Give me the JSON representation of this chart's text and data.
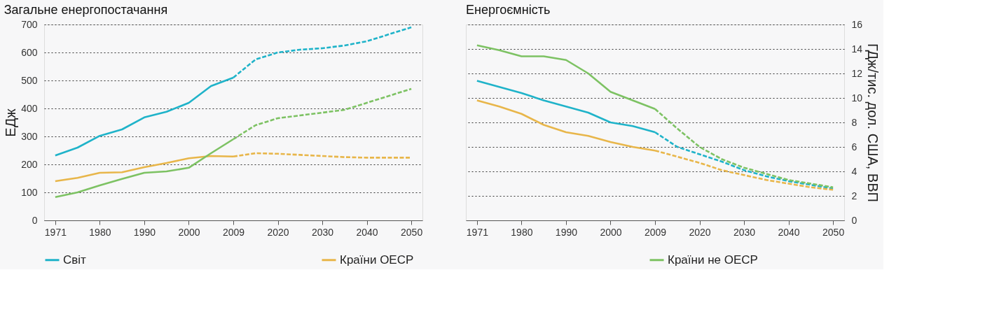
{
  "chart_data": [
    {
      "type": "line",
      "title": "Загальне енергопостачання",
      "ylabel": "ЕДж",
      "categories": [
        "1971",
        null,
        "1980",
        null,
        "1990",
        null,
        "2000",
        null,
        "2009",
        null,
        "2020",
        null,
        "2030",
        null,
        "2040",
        null,
        "2050"
      ],
      "ylim": [
        0,
        700
      ],
      "yticks": [
        0,
        100,
        200,
        300,
        400,
        500,
        600,
        700
      ],
      "grid": "y",
      "legend": "bottom",
      "series": [
        {
          "name": "Світ",
          "color": "#1fb3c9",
          "line_style": "solid",
          "values": [
            232,
            260,
            302,
            325,
            368,
            388,
            420,
            480,
            510,
            null,
            null,
            null,
            null,
            null,
            null,
            null,
            null
          ]
        },
        {
          "color": "#1fb3c9",
          "line_style": "dashed",
          "values": [
            null,
            null,
            null,
            null,
            null,
            null,
            null,
            null,
            510,
            575,
            600,
            610,
            615,
            625,
            640,
            665,
            690
          ]
        },
        {
          "name": "Країни ОЕСР",
          "color": "#e8b64a",
          "line_style": "solid",
          "values": [
            140,
            152,
            170,
            172,
            190,
            205,
            222,
            230,
            228,
            null,
            null,
            null,
            null,
            null,
            null,
            null,
            null
          ]
        },
        {
          "color": "#e8b64a",
          "line_style": "dashed",
          "values": [
            null,
            null,
            null,
            null,
            null,
            null,
            null,
            null,
            228,
            240,
            238,
            234,
            230,
            226,
            224,
            224,
            224
          ]
        },
        {
          "name": "Країни не ОЕСР",
          "color": "#7dc263",
          "line_style": "solid",
          "values": [
            83,
            100,
            125,
            148,
            170,
            175,
            188,
            240,
            290,
            null,
            null,
            null,
            null,
            null,
            null,
            null,
            null
          ]
        },
        {
          "color": "#7dc263",
          "line_style": "dashed",
          "values": [
            null,
            null,
            null,
            null,
            null,
            null,
            null,
            null,
            290,
            340,
            365,
            375,
            385,
            395,
            420,
            445,
            470
          ]
        }
      ]
    },
    {
      "type": "line",
      "title": "Енергоємність",
      "ylabel": "ГДж/тис. дол. США, ВВП",
      "categories": [
        "1971",
        null,
        "1980",
        null,
        "1990",
        null,
        "2000",
        null,
        "2009",
        null,
        "2020",
        null,
        "2030",
        null,
        "2040",
        null,
        "2050"
      ],
      "ylim": [
        0,
        16
      ],
      "yticks": [
        0,
        2,
        4,
        6,
        8,
        10,
        12,
        14,
        16
      ],
      "grid": "y",
      "legend": "bottom",
      "series": [
        {
          "name": "Світ",
          "color": "#1fb3c9",
          "line_style": "solid",
          "values": [
            11.4,
            10.9,
            10.4,
            9.8,
            9.3,
            8.8,
            8.0,
            7.7,
            7.2,
            null,
            null,
            null,
            null,
            null,
            null,
            null,
            null
          ]
        },
        {
          "color": "#1fb3c9",
          "line_style": "dashed",
          "values": [
            null,
            null,
            null,
            null,
            null,
            null,
            null,
            null,
            7.2,
            6.0,
            5.4,
            4.8,
            4.1,
            3.6,
            3.2,
            2.9,
            2.6
          ]
        },
        {
          "name": "Країни ОЕСР",
          "color": "#e8b64a",
          "line_style": "solid",
          "values": [
            9.8,
            9.3,
            8.7,
            7.8,
            7.2,
            6.9,
            6.4,
            6.0,
            5.7,
            null,
            null,
            null,
            null,
            null,
            null,
            null,
            null
          ]
        },
        {
          "color": "#e8b64a",
          "line_style": "dashed",
          "values": [
            null,
            null,
            null,
            null,
            null,
            null,
            null,
            null,
            5.7,
            5.2,
            4.7,
            4.1,
            3.7,
            3.3,
            3.0,
            2.7,
            2.5
          ]
        },
        {
          "name": "Країни не ОЕСР",
          "color": "#7dc263",
          "line_style": "solid",
          "values": [
            14.3,
            13.9,
            13.4,
            13.4,
            13.1,
            12.0,
            10.5,
            9.8,
            9.1,
            null,
            null,
            null,
            null,
            null,
            null,
            null,
            null
          ]
        },
        {
          "color": "#7dc263",
          "line_style": "dashed",
          "values": [
            null,
            null,
            null,
            null,
            null,
            null,
            null,
            null,
            9.1,
            7.5,
            6.0,
            5.0,
            4.3,
            3.8,
            3.3,
            3.0,
            2.7
          ]
        }
      ]
    }
  ]
}
